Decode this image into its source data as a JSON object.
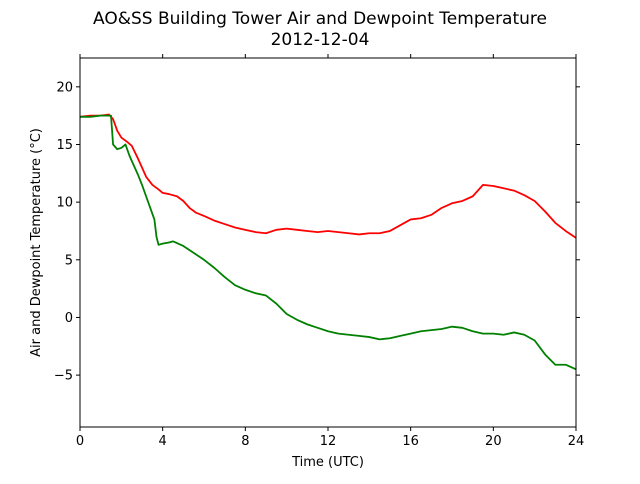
{
  "chart_data": {
    "type": "line",
    "title": "AO&SS Building Tower Air and Dewpoint Temperature",
    "subtitle": "2012-12-04",
    "xlabel": "Time (UTC)",
    "ylabel": "Air and Dewpoint Temperature (°C)",
    "xlim": [
      0,
      24
    ],
    "ylim": [
      -9.5,
      22.5
    ],
    "xticks": [
      0,
      4,
      8,
      12,
      16,
      20,
      24
    ],
    "yticks": [
      -5,
      0,
      5,
      10,
      15,
      20
    ],
    "grid": false,
    "series": [
      {
        "color": "#ff0000",
        "x": [
          0,
          0.5,
          1.0,
          1.4,
          1.6,
          1.8,
          2.0,
          2.3,
          2.5,
          2.8,
          3.0,
          3.2,
          3.5,
          3.8,
          4.0,
          4.3,
          4.7,
          5.0,
          5.3,
          5.6,
          6.0,
          6.5,
          7.0,
          7.5,
          8.0,
          8.5,
          9.0,
          9.5,
          10.0,
          10.5,
          11.0,
          11.5,
          12.0,
          12.5,
          13.0,
          13.5,
          14.0,
          14.5,
          15.0,
          15.5,
          16.0,
          16.5,
          17.0,
          17.5,
          18.0,
          18.5,
          19.0,
          19.5,
          20.0,
          20.5,
          21.0,
          21.5,
          22.0,
          22.5,
          23.0,
          23.5,
          24.0
        ],
        "values": [
          17.4,
          17.5,
          17.5,
          17.6,
          17.2,
          16.2,
          15.6,
          15.2,
          14.9,
          13.8,
          13.0,
          12.2,
          11.5,
          11.1,
          10.8,
          10.7,
          10.5,
          10.1,
          9.5,
          9.1,
          8.8,
          8.4,
          8.1,
          7.8,
          7.6,
          7.4,
          7.3,
          7.6,
          7.7,
          7.6,
          7.5,
          7.4,
          7.5,
          7.4,
          7.3,
          7.2,
          7.3,
          7.3,
          7.5,
          8.0,
          8.5,
          8.6,
          8.9,
          9.5,
          9.9,
          10.1,
          10.5,
          11.5,
          11.4,
          11.2,
          11.0,
          10.6,
          10.1,
          9.2,
          8.2,
          7.5,
          6.9
        ]
      },
      {
        "color": "#008000",
        "x": [
          0,
          0.5,
          1.0,
          1.5,
          1.6,
          1.8,
          2.0,
          2.2,
          2.4,
          2.6,
          2.8,
          3.0,
          3.2,
          3.4,
          3.6,
          3.7,
          3.8,
          4.0,
          4.3,
          4.5,
          5.0,
          5.5,
          6.0,
          6.5,
          7.0,
          7.5,
          8.0,
          8.5,
          9.0,
          9.5,
          10.0,
          10.5,
          11.0,
          11.5,
          12.0,
          12.5,
          13.0,
          13.5,
          14.0,
          14.5,
          15.0,
          15.5,
          16.0,
          16.5,
          17.0,
          17.5,
          18.0,
          18.5,
          19.0,
          19.5,
          20.0,
          20.5,
          21.0,
          21.5,
          22.0,
          22.5,
          23.0,
          23.5,
          24.0
        ],
        "values": [
          17.4,
          17.4,
          17.5,
          17.5,
          15.0,
          14.6,
          14.7,
          15.0,
          14.0,
          13.2,
          12.4,
          11.5,
          10.5,
          9.5,
          8.5,
          7.0,
          6.3,
          6.4,
          6.5,
          6.6,
          6.2,
          5.6,
          5.0,
          4.3,
          3.5,
          2.8,
          2.4,
          2.1,
          1.9,
          1.2,
          0.3,
          -0.2,
          -0.6,
          -0.9,
          -1.2,
          -1.4,
          -1.5,
          -1.6,
          -1.7,
          -1.9,
          -1.8,
          -1.6,
          -1.4,
          -1.2,
          -1.1,
          -1.0,
          -0.8,
          -0.9,
          -1.2,
          -1.4,
          -1.4,
          -1.5,
          -1.3,
          -1.5,
          -2.0,
          -3.2,
          -4.1,
          -4.1,
          -4.5
        ]
      }
    ]
  }
}
